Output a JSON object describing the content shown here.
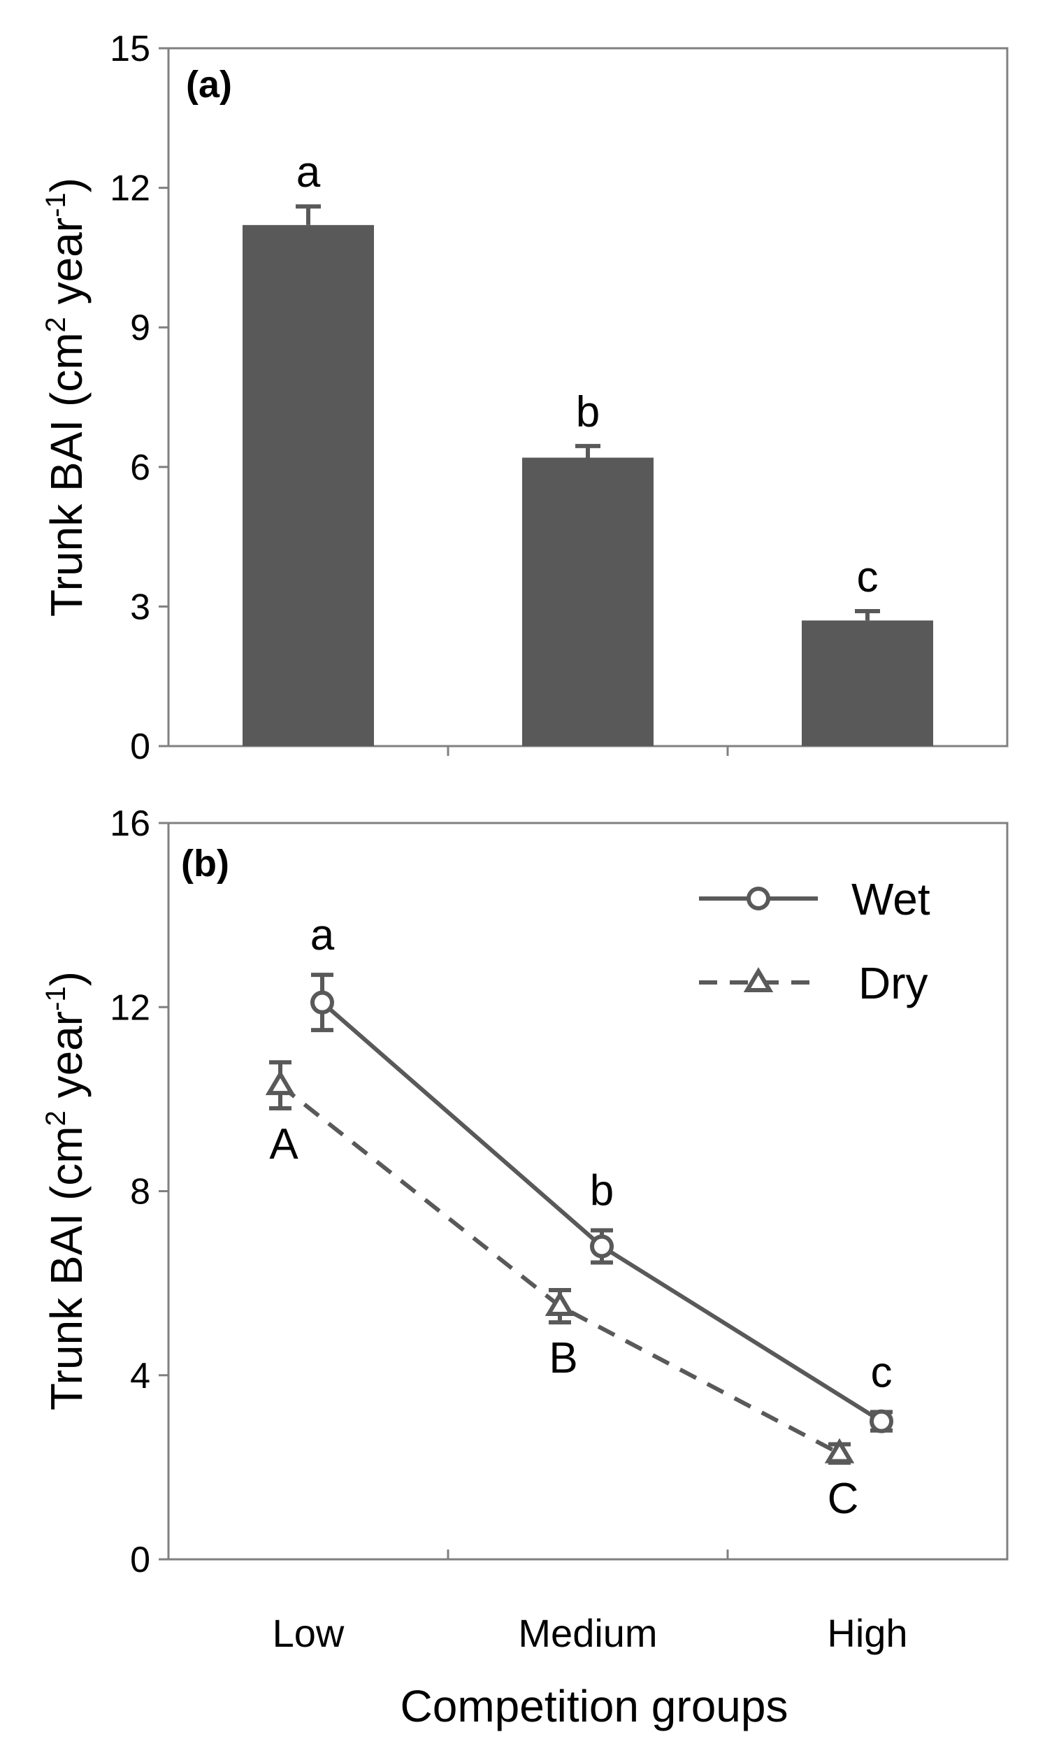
{
  "chart_data": [
    {
      "panel_label": "(a)",
      "type": "bar",
      "ylabel": "Trunk BAI (cm² year⁻¹)",
      "ylabel_main": "Trunk BAI (cm",
      "ylabel_sup1": "2",
      "ylabel_mid": " year",
      "ylabel_sup2": "-1",
      "ylabel_end": ")",
      "ylim": [
        0,
        15
      ],
      "yticks": [
        0,
        3,
        6,
        9,
        12,
        15
      ],
      "categories": [
        "Low",
        "Medium",
        "High"
      ],
      "values": [
        11.2,
        6.2,
        2.7
      ],
      "errors": [
        0.4,
        0.25,
        0.2
      ],
      "letters": [
        "a",
        "b",
        "c"
      ]
    },
    {
      "panel_label": "(b)",
      "type": "line",
      "ylabel": "Trunk BAI (cm² year⁻¹)",
      "ylabel_main": "Trunk BAI (cm",
      "ylabel_sup1": "2",
      "ylabel_mid": " year",
      "ylabel_sup2": "-1",
      "ylabel_end": ")",
      "xlabel": "Competition groups",
      "ylim": [
        0,
        16
      ],
      "yticks": [
        0,
        4,
        8,
        12,
        16
      ],
      "categories": [
        "Low",
        "Medium",
        "High"
      ],
      "series": [
        {
          "name": "Wet",
          "marker": "circle",
          "line": "solid",
          "values": [
            12.1,
            6.8,
            3.0
          ],
          "errors": [
            0.6,
            0.35,
            0.2
          ],
          "letters": [
            "a",
            "b",
            "c"
          ]
        },
        {
          "name": "Dry",
          "marker": "triangle",
          "line": "dashed",
          "values": [
            10.3,
            5.5,
            2.3
          ],
          "errors": [
            0.5,
            0.35,
            0.2
          ],
          "letters": [
            "A",
            "B",
            "C"
          ]
        }
      ]
    }
  ],
  "colors": {
    "mark": "#595959",
    "axis": "#808080",
    "text": "#000000"
  }
}
